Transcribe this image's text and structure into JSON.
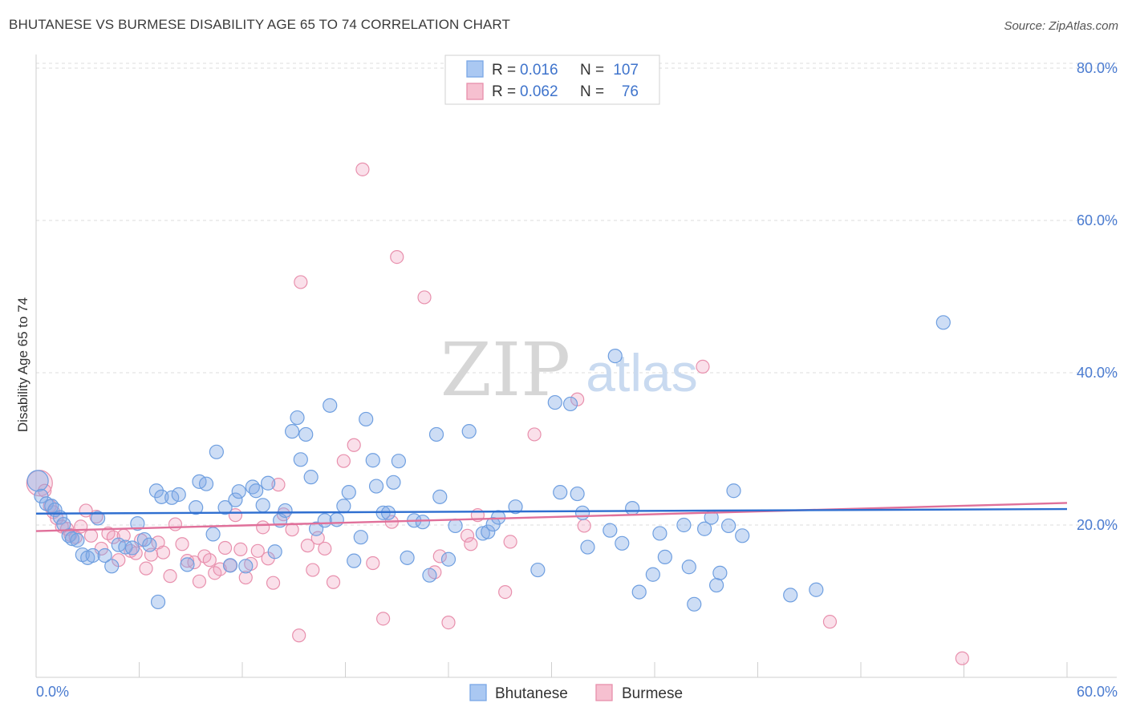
{
  "title": "BHUTANESE VS BURMESE DISABILITY AGE 65 TO 74 CORRELATION CHART",
  "source": "Source: ZipAtlas.com",
  "watermark": {
    "zip": "ZIP",
    "atlas": "atlas"
  },
  "legend_top": [
    {
      "r_label": "R =",
      "r_value": "0.016",
      "n_label": "N =",
      "n_value": "107",
      "color": "#7aa7e6",
      "fill": "#aac8f2"
    },
    {
      "r_label": "R =",
      "r_value": "0.062",
      "n_label": "N =",
      "n_value": "76",
      "color": "#e88fab",
      "fill": "#f6c0d0"
    }
  ],
  "colors": {
    "bhutanese_stroke": "#6f9fe0",
    "bhutanese_fill": "rgba(130,170,230,0.40)",
    "bhutanese_line": "#2f6fd0",
    "burmese_stroke": "#e890ad",
    "burmese_fill": "rgba(240,160,190,0.32)",
    "burmese_line": "#e0709a",
    "value_text": "#3f74cc",
    "grid": "#dddddd"
  },
  "chart_data": {
    "type": "scatter",
    "title": "BHUTANESE VS BURMESE DISABILITY AGE 65 TO 74 CORRELATION CHART",
    "xlabel": "",
    "ylabel": "Disability Age 65 to 74",
    "xlim": [
      0,
      60
    ],
    "ylim": [
      0,
      84
    ],
    "x_tick_labels": [
      "0.0%",
      "60.0%"
    ],
    "y_ticks": [
      20,
      40,
      60,
      80
    ],
    "y_tick_labels": [
      "20.0%",
      "40.0%",
      "60.0%",
      "80.0%"
    ],
    "grid": "horizontal dashed",
    "legend_position": "bottom-center",
    "series": [
      {
        "name": "Bhutanese",
        "R": 0.016,
        "N": 107,
        "trend": [
          [
            0,
            21.5
          ],
          [
            60,
            22.1
          ]
        ],
        "points": [
          [
            0.1,
            25.8
          ],
          [
            0.3,
            23.8
          ],
          [
            0.6,
            22.8
          ],
          [
            0.9,
            22.5
          ],
          [
            1.1,
            22.0
          ],
          [
            1.4,
            21.0
          ],
          [
            1.6,
            20.1
          ],
          [
            1.9,
            18.6
          ],
          [
            2.1,
            18.2
          ],
          [
            2.4,
            18.0
          ],
          [
            2.7,
            16.1
          ],
          [
            3.0,
            15.7
          ],
          [
            3.3,
            16.0
          ],
          [
            3.6,
            20.9
          ],
          [
            4.0,
            16.0
          ],
          [
            4.4,
            14.6
          ],
          [
            4.8,
            17.4
          ],
          [
            5.2,
            17.1
          ],
          [
            5.6,
            17.0
          ],
          [
            5.9,
            20.2
          ],
          [
            6.3,
            18.1
          ],
          [
            6.6,
            17.4
          ],
          [
            7.0,
            24.5
          ],
          [
            7.3,
            23.7
          ],
          [
            7.1,
            9.9
          ],
          [
            7.9,
            23.6
          ],
          [
            8.3,
            24.0
          ],
          [
            8.8,
            14.8
          ],
          [
            9.3,
            22.3
          ],
          [
            9.5,
            25.7
          ],
          [
            9.9,
            25.4
          ],
          [
            10.3,
            18.8
          ],
          [
            10.5,
            29.6
          ],
          [
            11.0,
            22.3
          ],
          [
            11.3,
            14.7
          ],
          [
            11.6,
            23.3
          ],
          [
            11.8,
            24.4
          ],
          [
            12.2,
            14.6
          ],
          [
            12.6,
            25.0
          ],
          [
            12.8,
            24.5
          ],
          [
            13.2,
            22.6
          ],
          [
            13.5,
            25.5
          ],
          [
            13.9,
            16.5
          ],
          [
            14.2,
            20.6
          ],
          [
            14.5,
            21.9
          ],
          [
            14.9,
            32.3
          ],
          [
            15.2,
            34.1
          ],
          [
            15.4,
            28.6
          ],
          [
            15.7,
            31.9
          ],
          [
            16.0,
            26.3
          ],
          [
            16.3,
            19.5
          ],
          [
            16.8,
            20.6
          ],
          [
            17.1,
            35.7
          ],
          [
            17.5,
            20.7
          ],
          [
            17.9,
            22.5
          ],
          [
            18.2,
            24.3
          ],
          [
            18.5,
            15.3
          ],
          [
            18.9,
            18.4
          ],
          [
            19.2,
            33.9
          ],
          [
            19.6,
            28.5
          ],
          [
            19.8,
            25.1
          ],
          [
            20.2,
            21.6
          ],
          [
            20.5,
            21.6
          ],
          [
            20.8,
            25.6
          ],
          [
            21.1,
            28.4
          ],
          [
            21.6,
            15.7
          ],
          [
            22.0,
            20.6
          ],
          [
            22.5,
            20.4
          ],
          [
            22.9,
            13.4
          ],
          [
            23.3,
            31.9
          ],
          [
            23.5,
            23.7
          ],
          [
            24.0,
            15.5
          ],
          [
            24.4,
            19.9
          ],
          [
            25.2,
            32.3
          ],
          [
            26.0,
            18.9
          ],
          [
            26.3,
            19.1
          ],
          [
            26.6,
            20.1
          ],
          [
            26.9,
            21.0
          ],
          [
            27.9,
            22.4
          ],
          [
            29.2,
            14.1
          ],
          [
            30.2,
            36.1
          ],
          [
            30.5,
            24.3
          ],
          [
            31.1,
            35.9
          ],
          [
            31.5,
            24.1
          ],
          [
            31.8,
            21.6
          ],
          [
            32.1,
            17.1
          ],
          [
            33.4,
            19.3
          ],
          [
            33.7,
            42.2
          ],
          [
            34.1,
            17.6
          ],
          [
            34.7,
            22.2
          ],
          [
            35.1,
            11.2
          ],
          [
            35.9,
            13.5
          ],
          [
            36.3,
            18.9
          ],
          [
            36.6,
            15.8
          ],
          [
            37.7,
            20.0
          ],
          [
            38.0,
            14.5
          ],
          [
            38.3,
            9.6
          ],
          [
            38.9,
            19.5
          ],
          [
            39.3,
            21.0
          ],
          [
            39.6,
            12.1
          ],
          [
            39.8,
            13.7
          ],
          [
            40.3,
            19.9
          ],
          [
            40.6,
            24.5
          ],
          [
            41.1,
            18.6
          ],
          [
            43.9,
            10.8
          ],
          [
            45.4,
            11.5
          ],
          [
            52.8,
            46.6
          ]
        ]
      },
      {
        "name": "Burmese",
        "R": 0.062,
        "N": 76,
        "trend": [
          [
            0,
            19.2
          ],
          [
            60,
            22.9
          ]
        ],
        "points": [
          [
            0.2,
            25.5
          ],
          [
            0.5,
            24.5
          ],
          [
            0.8,
            22.5
          ],
          [
            1.0,
            21.7
          ],
          [
            1.2,
            20.9
          ],
          [
            1.5,
            19.8
          ],
          [
            1.8,
            19.5
          ],
          [
            2.0,
            18.7
          ],
          [
            2.3,
            18.4
          ],
          [
            2.6,
            19.8
          ],
          [
            2.9,
            21.9
          ],
          [
            3.2,
            18.6
          ],
          [
            3.5,
            21.1
          ],
          [
            3.8,
            16.9
          ],
          [
            4.2,
            18.9
          ],
          [
            4.5,
            18.4
          ],
          [
            4.8,
            15.4
          ],
          [
            5.1,
            18.6
          ],
          [
            5.5,
            16.6
          ],
          [
            5.8,
            16.3
          ],
          [
            6.1,
            18.0
          ],
          [
            6.4,
            14.3
          ],
          [
            6.7,
            16.1
          ],
          [
            7.1,
            17.7
          ],
          [
            7.4,
            16.4
          ],
          [
            7.8,
            13.3
          ],
          [
            8.1,
            20.1
          ],
          [
            8.5,
            17.5
          ],
          [
            8.8,
            15.3
          ],
          [
            9.2,
            15.1
          ],
          [
            9.5,
            12.6
          ],
          [
            9.8,
            15.9
          ],
          [
            10.1,
            15.4
          ],
          [
            10.4,
            13.7
          ],
          [
            10.7,
            14.2
          ],
          [
            11.0,
            17.0
          ],
          [
            11.3,
            14.7
          ],
          [
            11.6,
            21.3
          ],
          [
            11.9,
            16.8
          ],
          [
            12.2,
            13.1
          ],
          [
            12.5,
            14.9
          ],
          [
            12.9,
            16.6
          ],
          [
            13.2,
            19.7
          ],
          [
            13.5,
            15.6
          ],
          [
            13.8,
            12.4
          ],
          [
            14.1,
            25.3
          ],
          [
            14.4,
            21.4
          ],
          [
            14.9,
            19.4
          ],
          [
            15.3,
            5.5
          ],
          [
            15.4,
            51.9
          ],
          [
            15.8,
            17.3
          ],
          [
            16.1,
            14.1
          ],
          [
            16.4,
            18.3
          ],
          [
            16.8,
            16.9
          ],
          [
            17.3,
            12.5
          ],
          [
            17.9,
            28.4
          ],
          [
            18.5,
            30.5
          ],
          [
            19.0,
            66.7
          ],
          [
            19.6,
            15.0
          ],
          [
            20.2,
            7.7
          ],
          [
            20.7,
            20.4
          ],
          [
            21.0,
            55.2
          ],
          [
            22.6,
            49.9
          ],
          [
            23.2,
            13.8
          ],
          [
            23.5,
            15.9
          ],
          [
            24.0,
            7.2
          ],
          [
            25.1,
            18.6
          ],
          [
            25.3,
            17.5
          ],
          [
            25.7,
            21.3
          ],
          [
            27.3,
            11.2
          ],
          [
            27.6,
            17.8
          ],
          [
            29.0,
            31.9
          ],
          [
            31.5,
            36.5
          ],
          [
            31.9,
            19.9
          ],
          [
            38.8,
            40.8
          ],
          [
            46.2,
            7.3
          ],
          [
            53.9,
            2.5
          ]
        ]
      }
    ]
  },
  "bottom_legend": [
    "Bhutanese",
    "Burmese"
  ]
}
